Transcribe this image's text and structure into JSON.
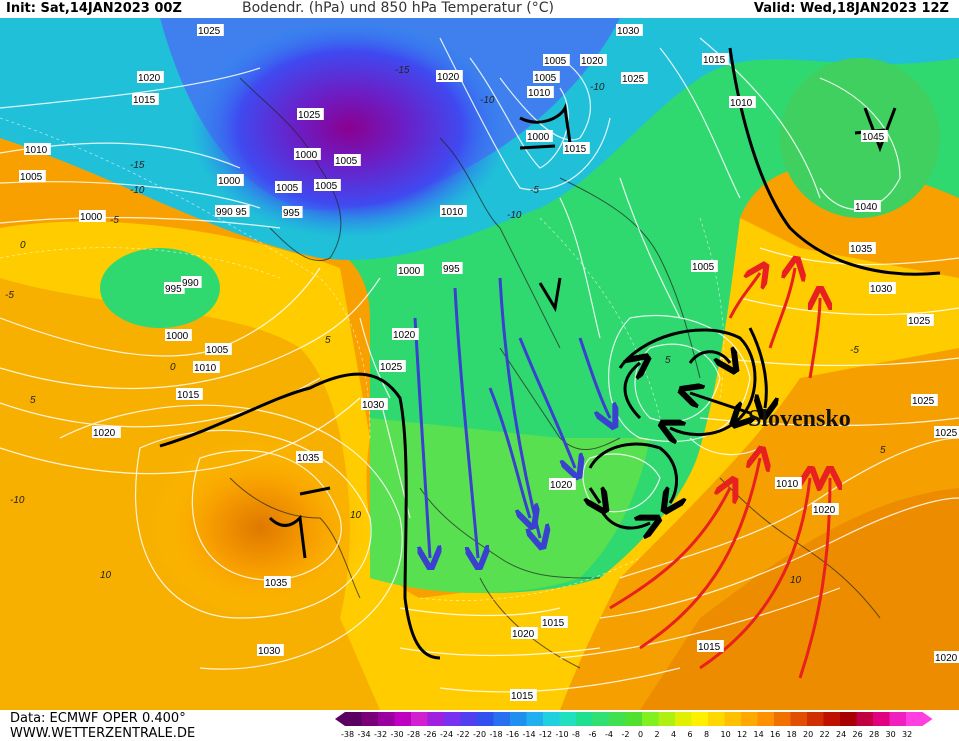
{
  "header": {
    "init": "Init: Sat,14JAN2023 00Z",
    "title": "Bodendr. (hPa) und 850 hPa Temperatur (°C)",
    "valid": "Valid: Wed,18JAN2023 12Z"
  },
  "map": {
    "annotation": "Slovensko",
    "isobar_labels": [
      {
        "text": "1025"
      },
      {
        "text": "1020"
      },
      {
        "text": "1015"
      },
      {
        "text": "1010"
      },
      {
        "text": "1005"
      },
      {
        "text": "1000"
      },
      {
        "text": "995"
      },
      {
        "text": "990"
      },
      {
        "text": "1000"
      },
      {
        "text": "1005"
      },
      {
        "text": "1010"
      },
      {
        "text": "1015"
      },
      {
        "text": "1020"
      },
      {
        "text": "1035"
      },
      {
        "text": "1035"
      },
      {
        "text": "1030"
      },
      {
        "text": "1030"
      },
      {
        "text": "1025"
      },
      {
        "text": "1020"
      },
      {
        "text": "1025"
      },
      {
        "text": "1020"
      },
      {
        "text": "1010"
      },
      {
        "text": "1005"
      },
      {
        "text": "1000"
      },
      {
        "text": "1005"
      },
      {
        "text": "1000"
      },
      {
        "text": "995"
      },
      {
        "text": "990"
      },
      {
        "text": "995"
      },
      {
        "text": "1005"
      },
      {
        "text": "1000"
      },
      {
        "text": "995"
      },
      {
        "text": "1000"
      },
      {
        "text": "1005"
      },
      {
        "text": "1005"
      },
      {
        "text": "1010"
      },
      {
        "text": "1015"
      },
      {
        "text": "1020"
      },
      {
        "text": "1015"
      },
      {
        "text": "1015"
      },
      {
        "text": "1020"
      },
      {
        "text": "1030"
      },
      {
        "text": "1025"
      },
      {
        "text": "1020"
      },
      {
        "text": "1015"
      },
      {
        "text": "1010"
      },
      {
        "text": "1005"
      },
      {
        "text": "1040"
      },
      {
        "text": "1045"
      },
      {
        "text": "1035"
      },
      {
        "text": "1030"
      },
      {
        "text": "1025"
      },
      {
        "text": "1025"
      },
      {
        "text": "1025"
      },
      {
        "text": "1020"
      },
      {
        "text": "1020"
      },
      {
        "text": "1010"
      },
      {
        "text": "1020"
      },
      {
        "text": "1015"
      }
    ],
    "temperature_labels": [
      "-10",
      "-5",
      "0",
      "5",
      "10",
      "-15",
      "-10",
      "-5",
      "0",
      "5",
      "10",
      "-10",
      "-5",
      "5",
      "10",
      "-5",
      "5",
      "-10",
      "-10",
      "-15"
    ]
  },
  "footer": {
    "data_source": "Data: ECMWF OPER 0.400°",
    "website": "WWW.WETTERZENTRALE.DE"
  },
  "legend": {
    "ticks": [
      "-38",
      "-34",
      "-32",
      "-30",
      "-28",
      "-26",
      "-24",
      "-22",
      "-20",
      "-18",
      "-16",
      "-14",
      "-12",
      "-10",
      "-8",
      "-6",
      "-4",
      "-2",
      "0",
      "2",
      "4",
      "6",
      "8",
      "10",
      "12",
      "14",
      "16",
      "18",
      "20",
      "22",
      "24",
      "26",
      "28",
      "30",
      "32"
    ],
    "colors": [
      "#5a0060",
      "#7a007a",
      "#9a00a0",
      "#c000c0",
      "#d020d0",
      "#a020e0",
      "#7a30f0",
      "#5040f0",
      "#3050f0",
      "#2870f0",
      "#2090f0",
      "#20b0f0",
      "#20d0e0",
      "#20e0c0",
      "#20e090",
      "#30e070",
      "#40e050",
      "#50e030",
      "#80f020",
      "#b0f010",
      "#e0f000",
      "#fff000",
      "#ffd800",
      "#ffc000",
      "#ffa800",
      "#ff9000",
      "#f07000",
      "#e05000",
      "#d03000",
      "#c01000",
      "#a80000",
      "#c00040",
      "#e00080",
      "#f020c0",
      "#ff40e0"
    ]
  }
}
